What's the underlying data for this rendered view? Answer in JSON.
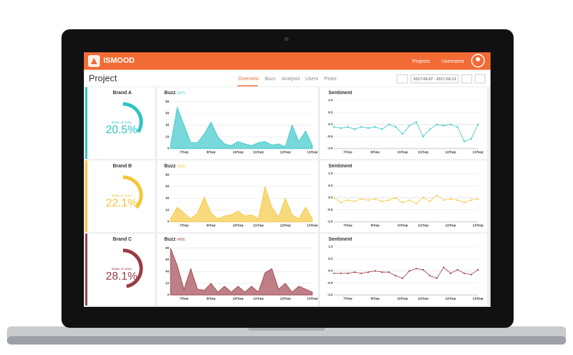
{
  "header": {
    "logo": "ISMOOD",
    "nav": [
      "Projects",
      "Username"
    ]
  },
  "toolbar": {
    "title": "Project",
    "tabs": [
      "Overview",
      "Buzz",
      "Analysis",
      "Users",
      "Posts"
    ],
    "date_range": "2017-09-07 - 2017-09-13"
  },
  "brands": [
    {
      "name": "Brand A",
      "color": "#2ec4c6",
      "share_caption": "Share of Voice",
      "share": 20.5,
      "share_label": "20.5%",
      "buzz": {
        "type": "area",
        "title": "Buzz",
        "total_label": "(327)",
        "categories": [
          null,
          null,
          "7/Sep",
          null,
          null,
          null,
          "8/Sep",
          null,
          null,
          null,
          "10/Sep",
          null,
          null,
          "11/Sep",
          null,
          null,
          null,
          "12/Sep",
          null,
          null,
          null,
          "13/Sep"
        ],
        "values": [
          5,
          70,
          40,
          10,
          10,
          25,
          45,
          20,
          8,
          5,
          12,
          8,
          5,
          10,
          12,
          6,
          8,
          3,
          40,
          12,
          30,
          5
        ],
        "ylim": [
          0,
          82
        ],
        "yticks": [
          0,
          20,
          40,
          60,
          80
        ]
      },
      "sentiment": {
        "type": "line",
        "title": "Sentiment",
        "categories": [
          null,
          null,
          "7/Sep",
          null,
          null,
          null,
          "8/Sep",
          null,
          null,
          null,
          "10/Sep",
          null,
          null,
          "11/Sep",
          null,
          null,
          null,
          "12/Sep",
          null,
          null,
          null,
          "13/Sep"
        ],
        "values": [
          -0.1,
          -0.15,
          -0.1,
          -0.2,
          -0.1,
          -0.15,
          -0.1,
          -0.2,
          0.0,
          -0.1,
          -0.4,
          -0.05,
          0.1,
          -0.5,
          -0.2,
          0.0,
          -0.05,
          0.0,
          -0.1,
          -0.7,
          -0.6,
          0.0
        ],
        "ylim": [
          -1,
          1
        ],
        "yticks": [
          {
            "value": 1,
            "label": "1.0"
          },
          {
            "value": 0.5,
            "label": "0.5"
          },
          {
            "value": 0,
            "label": "0.0"
          },
          {
            "value": -0.5,
            "label": "-0.5"
          },
          {
            "value": -1,
            "label": "-1.0"
          }
        ]
      }
    },
    {
      "name": "Brand B",
      "color": "#f5c535",
      "share_caption": "Share of Voice",
      "share": 22.1,
      "share_label": "22.1%",
      "buzz": {
        "type": "area",
        "title": "Buzz",
        "total_label": "(353)",
        "categories": [
          null,
          null,
          "7/Sep",
          null,
          null,
          null,
          "8/Sep",
          null,
          null,
          null,
          "10/Sep",
          null,
          null,
          "11/Sep",
          null,
          null,
          null,
          "12/Sep",
          null,
          null,
          null,
          "13/Sep"
        ],
        "values": [
          5,
          25,
          15,
          5,
          15,
          42,
          15,
          5,
          10,
          12,
          18,
          10,
          12,
          5,
          60,
          25,
          8,
          40,
          12,
          5,
          25,
          5
        ],
        "ylim": [
          0,
          82
        ],
        "yticks": [
          0,
          20,
          40,
          60,
          80
        ]
      },
      "sentiment": {
        "type": "line",
        "title": "Sentiment",
        "categories": [
          null,
          null,
          "7/Sep",
          null,
          null,
          null,
          "8/Sep",
          null,
          null,
          null,
          "10/Sep",
          null,
          null,
          "11/Sep",
          null,
          null,
          null,
          "12/Sep",
          null,
          null,
          null,
          "13/Sep"
        ],
        "values": [
          0.0,
          -0.2,
          -0.1,
          -0.15,
          -0.05,
          -0.1,
          -0.05,
          -0.15,
          -0.1,
          0.0,
          -0.2,
          -0.1,
          -0.25,
          0.0,
          -0.15,
          0.1,
          -0.1,
          -0.05,
          -0.1,
          -0.2,
          -0.1,
          -0.05
        ],
        "ylim": [
          -1,
          1
        ],
        "yticks": [
          {
            "value": 1,
            "label": "1.0"
          },
          {
            "value": 0.5,
            "label": "0.5"
          },
          {
            "value": 0,
            "label": "0.0"
          },
          {
            "value": -0.5,
            "label": "-0.5"
          },
          {
            "value": -1,
            "label": "-1.0"
          }
        ]
      }
    },
    {
      "name": "Brand C",
      "color": "#9b3c45",
      "share_caption": "Share of Voice",
      "share": 28.1,
      "share_label": "28.1%",
      "buzz": {
        "type": "area",
        "title": "Buzz",
        "total_label": "(450)",
        "categories": [
          null,
          null,
          "7/Sep",
          null,
          null,
          null,
          "8/Sep",
          null,
          null,
          null,
          "10/Sep",
          null,
          null,
          "11/Sep",
          null,
          null,
          null,
          "12/Sep",
          null,
          null,
          null,
          "13/Sep"
        ],
        "values": [
          80,
          50,
          10,
          45,
          10,
          8,
          20,
          5,
          15,
          5,
          15,
          5,
          15,
          5,
          38,
          45,
          10,
          20,
          5,
          15,
          10,
          5
        ],
        "ylim": [
          0,
          82
        ],
        "yticks": [
          0,
          20,
          40,
          60,
          80
        ]
      },
      "sentiment": {
        "type": "line",
        "title": "Sentiment",
        "categories": [
          null,
          null,
          "7/Sep",
          null,
          null,
          null,
          "8/Sep",
          null,
          null,
          null,
          "10/Sep",
          null,
          null,
          "11/Sep",
          null,
          null,
          null,
          "12/Sep",
          null,
          null,
          null,
          "13/Sep"
        ],
        "values": [
          -0.1,
          -0.1,
          -0.1,
          -0.05,
          -0.1,
          -0.05,
          0.0,
          -0.05,
          -0.05,
          -0.2,
          -0.3,
          0.0,
          0.1,
          0.05,
          -0.2,
          -0.3,
          0.15,
          -0.1,
          0.05,
          -0.1,
          -0.15,
          0.05
        ],
        "ylim": [
          -1,
          1
        ],
        "yticks": [
          {
            "value": 1,
            "label": "1.0"
          },
          {
            "value": 0.5,
            "label": "0.5"
          },
          {
            "value": 0,
            "label": "0.0"
          },
          {
            "value": -0.5,
            "label": "-0.5"
          },
          {
            "value": -1,
            "label": "-1.0"
          }
        ]
      }
    }
  ]
}
